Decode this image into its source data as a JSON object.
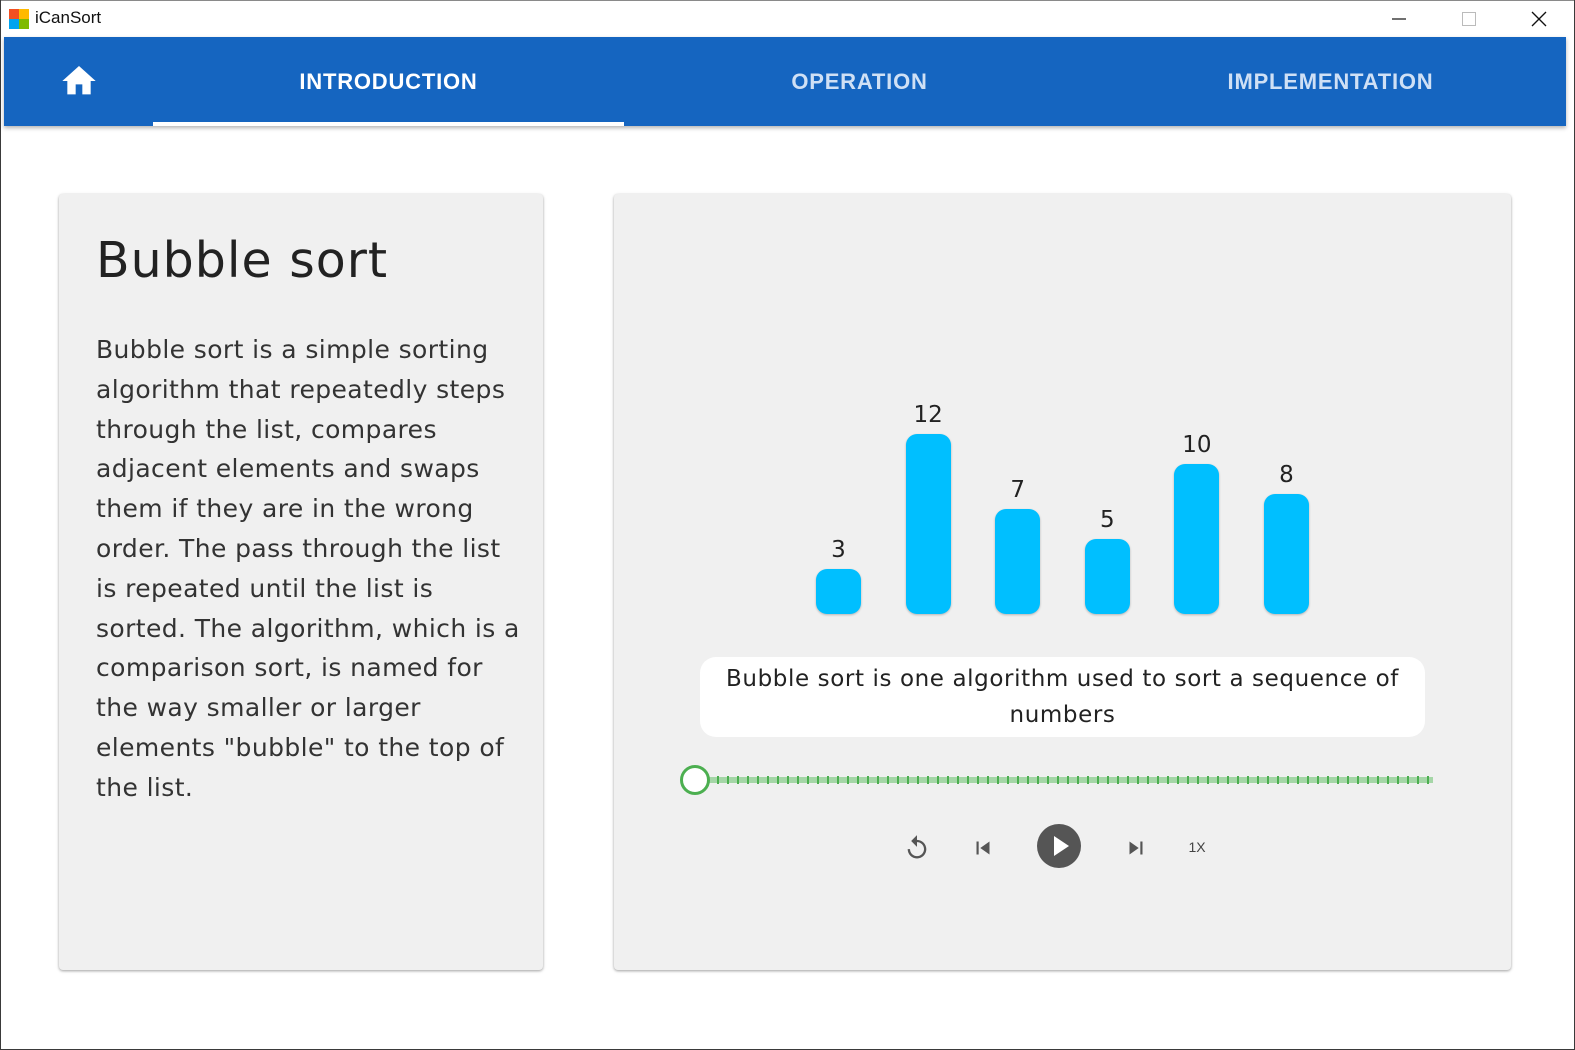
{
  "window": {
    "title": "iCanSort"
  },
  "nav": {
    "home_icon": "home-icon",
    "tabs": [
      {
        "label": "INTRODUCTION",
        "active": true
      },
      {
        "label": "OPERATION",
        "active": false
      },
      {
        "label": "IMPLEMENTATION",
        "active": false
      }
    ]
  },
  "intro": {
    "title": "Bubble sort",
    "description": "Bubble sort is a simple sorting algorithm that repeatedly steps through the list, compares adjacent elements and swaps them if they are in the wrong order. The pass through the list is repeated until the list is sorted. The algorithm, which is a comparison sort, is named for the way smaller or larger elements \"bubble\" to the top of the list."
  },
  "visualization": {
    "values": [
      3,
      12,
      7,
      5,
      10,
      8
    ],
    "bar_color": "#00bfff",
    "caption": "Bubble sort is one algorithm used to sort a sequence of numbers",
    "progress": 0
  },
  "controls": {
    "reset_icon": "replay-icon",
    "prev_icon": "skip-previous-icon",
    "play_icon": "play-icon",
    "next_icon": "skip-next-icon",
    "speed_label": "1X"
  },
  "colors": {
    "appbar": "#1565c0",
    "card": "#f0f0f0",
    "slider_thumb": "#4caf50",
    "slider_track": "#a5d6a7"
  }
}
